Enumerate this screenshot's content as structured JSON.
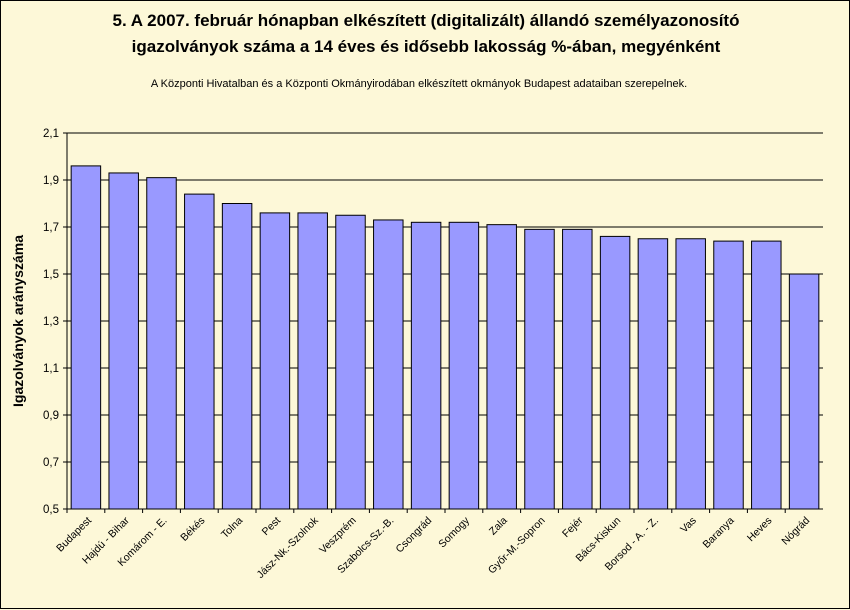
{
  "chart_data": {
    "type": "bar",
    "title_line1": "5. A 2007. február hónapban elkészített (digitalizált) állandó személyazonosító",
    "title_line2": "igazolványok száma a 14 éves és idősebb lakosság %-ában, megyénként",
    "subtitle": "A  Központi Hivatalban és a Központi Okmányirodában elkészített  okmányok Budapest adataiban szerepelnek.",
    "ylabel": "Igazolványok arányszáma",
    "xlabel": "",
    "ylim": [
      0.5,
      2.1
    ],
    "yticks": [
      "0,5",
      "0,7",
      "0,9",
      "1,1",
      "1,3",
      "1,5",
      "1,7",
      "1,9",
      "2,1"
    ],
    "grid": true,
    "bar_color": "#9999ff",
    "categories": [
      "Budapest",
      "Hajdú - Bihar",
      "Komárom - E.",
      "Békés",
      "Tolna",
      "Pest",
      "Jász-Nk.-Szolnok",
      "Veszprém",
      "Szabolcs-Sz.-B.",
      "Csongrád",
      "Somogy",
      "Zala",
      "Győr-M.-Sopron",
      "Fejér",
      "Bács-Kiskun",
      "Borsod - A. - Z.",
      "Vas",
      "Baranya",
      "Heves",
      "Nógrád"
    ],
    "values": [
      1.96,
      1.93,
      1.91,
      1.84,
      1.8,
      1.76,
      1.76,
      1.75,
      1.73,
      1.72,
      1.72,
      1.71,
      1.69,
      1.69,
      1.66,
      1.65,
      1.65,
      1.64,
      1.64,
      1.5
    ]
  }
}
